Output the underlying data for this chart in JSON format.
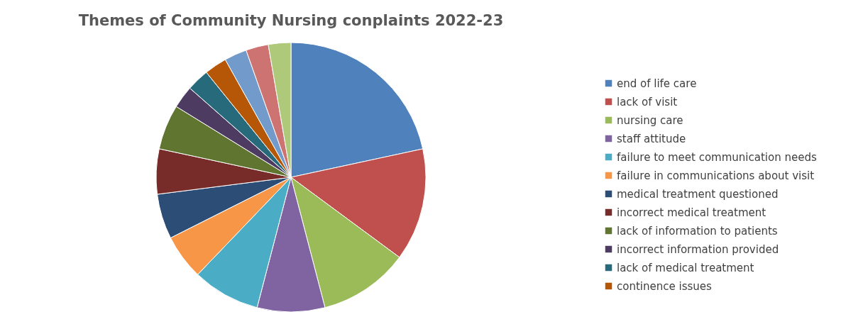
{
  "chart_data": {
    "type": "pie",
    "title": "Themes of Community Nursing conplaints 2022-23",
    "categories": [
      "end of life care",
      "lack of visit",
      "nursing care",
      "staff attitude",
      "failure to meet communication needs",
      "failure in communications about visit",
      "medical treatment questioned",
      "incorrect medical treatment",
      "lack of information to patients",
      "incorrect information provided",
      "lack of medical treatment",
      "continence issues",
      null,
      null,
      null
    ],
    "values": [
      21.62,
      13.51,
      10.81,
      8.11,
      8.11,
      5.41,
      5.41,
      5.41,
      5.41,
      2.7,
      2.7,
      2.7,
      2.7,
      2.7,
      2.7
    ],
    "colors": [
      "#4f81bd",
      "#c0504d",
      "#9bbb59",
      "#8064a2",
      "#4bacc6",
      "#f79646",
      "#2c4d75",
      "#772c2a",
      "#5f7530",
      "#4d3b62",
      "#276a7c",
      "#b65708",
      "#729aca",
      "#cd7371",
      "#afc97a"
    ],
    "legend": "right"
  }
}
